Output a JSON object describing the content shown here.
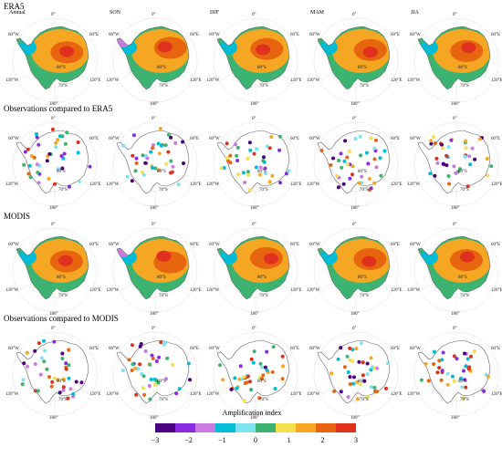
{
  "rows": [
    {
      "title": "ERA5",
      "kind": "field",
      "seasons": [
        "Annual",
        "SON",
        "DJF",
        "MAM",
        "JJA"
      ]
    },
    {
      "title": "Observations compared to ERA5",
      "kind": "stations",
      "seasons": [
        "",
        "",
        "",
        "",
        ""
      ]
    },
    {
      "title": "MODIS",
      "kind": "field",
      "seasons": [
        "",
        "",
        "",
        "",
        ""
      ]
    },
    {
      "title": "Observations compared to MODIS",
      "kind": "stations",
      "seasons": [
        "",
        "",
        "",
        "",
        ""
      ]
    }
  ],
  "map_labels": {
    "top": "0°",
    "bottom": "180°",
    "left_upper": "60°W",
    "right_upper": "60°E",
    "left_lower": "120°W",
    "right_lower": "120°E",
    "lat80": "80°S",
    "lat70": "70°S"
  },
  "legend": {
    "title": "Amplification index",
    "ticks": [
      "−3",
      "−2",
      "−1",
      "0",
      "1",
      "2",
      "3"
    ],
    "colors": [
      "#4b0082",
      "#8a2be2",
      "#c97be0",
      "#00bcd4",
      "#7fe3ee",
      "#3cb371",
      "#f4e04d",
      "#f5a623",
      "#e8650f",
      "#e0301e"
    ]
  }
}
